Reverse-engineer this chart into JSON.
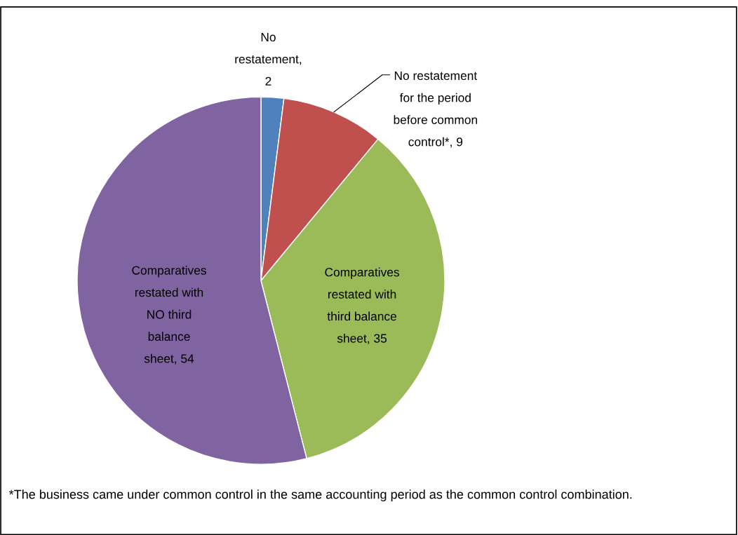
{
  "chart_data": {
    "type": "pie",
    "categories": [
      "No restatement",
      "No restatement for the period before common control*",
      "Comparatives restated with third balance sheet",
      "Comparatives restated with NO third balance sheet"
    ],
    "values": [
      2,
      9,
      35,
      54
    ],
    "colors": [
      "#4f81bd",
      "#c0504d",
      "#9bbb59",
      "#8064a2"
    ],
    "value_labels": [
      ", 2",
      ", 9",
      ", 35",
      ", 54"
    ],
    "legend": false,
    "annotations": [
      "*The business came under common control in the same accounting period as the common control combination."
    ]
  }
}
